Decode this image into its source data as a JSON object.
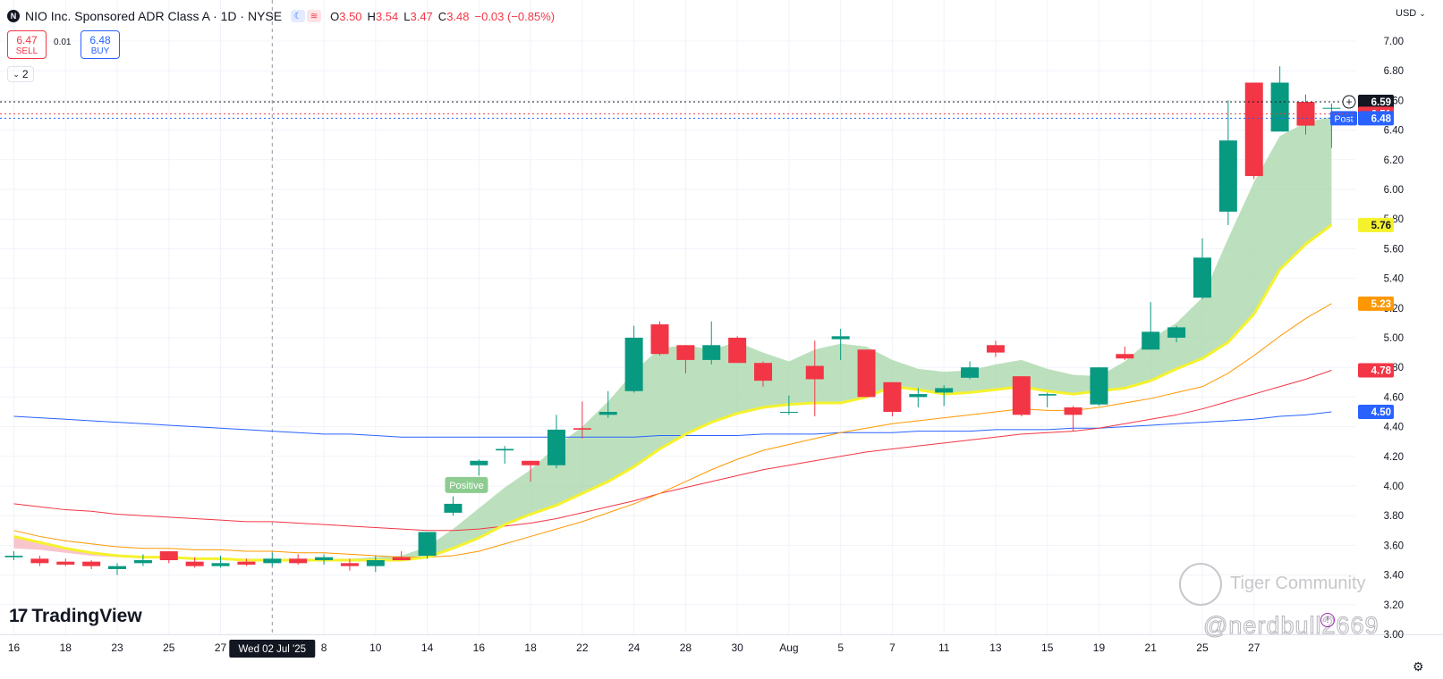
{
  "header": {
    "title": "NIO Inc. Sponsored ADR Class A · 1D · NYSE",
    "open": "3.50",
    "high": "3.54",
    "low": "3.47",
    "close": "3.48",
    "change": "−0.03 (−0.85%)"
  },
  "trade": {
    "sell_price": "6.47",
    "sell_label": "SELL",
    "buy_price": "6.48",
    "buy_label": "BUY",
    "spread": "0.01"
  },
  "indicator_count": "2",
  "currency": "USD",
  "branding": {
    "logo_text": "TradingView",
    "watermark": "Tiger Community",
    "handle": "@nerdbull2669"
  },
  "colors": {
    "up": "#089981",
    "down": "#f23645",
    "ema_fast": "#f5f22d",
    "ema_mid": "#ff9800",
    "ema_slow": "#f23645",
    "ema_long": "#2962ff",
    "cloud_up": "#a5d6a7",
    "cloud_down": "#f8bbc4"
  },
  "chart_data": {
    "type": "candlestick",
    "ylim": [
      3.0,
      7.0
    ],
    "y_ticks": [
      "3.00",
      "3.20",
      "3.40",
      "3.60",
      "3.80",
      "4.00",
      "4.20",
      "4.40",
      "4.60",
      "4.80",
      "5.00",
      "5.20",
      "5.40",
      "5.60",
      "5.80",
      "6.00",
      "6.20",
      "6.40",
      "6.60",
      "6.80",
      "7.00"
    ],
    "x_tick_labels": [
      {
        "i": 0,
        "label": "16"
      },
      {
        "i": 2,
        "label": "18"
      },
      {
        "i": 4,
        "label": "23"
      },
      {
        "i": 6,
        "label": "25"
      },
      {
        "i": 8,
        "label": "27"
      },
      {
        "i": 12,
        "label": "8"
      },
      {
        "i": 14,
        "label": "10"
      },
      {
        "i": 16,
        "label": "14"
      },
      {
        "i": 18,
        "label": "16"
      },
      {
        "i": 20,
        "label": "18"
      },
      {
        "i": 22,
        "label": "22"
      },
      {
        "i": 24,
        "label": "24"
      },
      {
        "i": 26,
        "label": "28"
      },
      {
        "i": 28,
        "label": "30"
      },
      {
        "i": 30,
        "label": "Aug"
      },
      {
        "i": 32,
        "label": "5"
      },
      {
        "i": 34,
        "label": "7"
      },
      {
        "i": 36,
        "label": "11"
      },
      {
        "i": 38,
        "label": "13"
      },
      {
        "i": 40,
        "label": "15"
      },
      {
        "i": 42,
        "label": "19"
      },
      {
        "i": 44,
        "label": "21"
      },
      {
        "i": 46,
        "label": "25"
      },
      {
        "i": 48,
        "label": "27"
      }
    ],
    "crosshair": {
      "i": 10,
      "label": "Wed 02 Jul '25"
    },
    "candles": [
      {
        "o": 3.52,
        "h": 3.56,
        "l": 3.5,
        "c": 3.53
      },
      {
        "o": 3.51,
        "h": 3.53,
        "l": 3.46,
        "c": 3.48
      },
      {
        "o": 3.49,
        "h": 3.51,
        "l": 3.46,
        "c": 3.47
      },
      {
        "o": 3.49,
        "h": 3.5,
        "l": 3.44,
        "c": 3.46
      },
      {
        "o": 3.44,
        "h": 3.48,
        "l": 3.4,
        "c": 3.46
      },
      {
        "o": 3.48,
        "h": 3.54,
        "l": 3.46,
        "c": 3.5
      },
      {
        "o": 3.56,
        "h": 3.56,
        "l": 3.48,
        "c": 3.5
      },
      {
        "o": 3.49,
        "h": 3.52,
        "l": 3.45,
        "c": 3.46
      },
      {
        "o": 3.46,
        "h": 3.53,
        "l": 3.45,
        "c": 3.48
      },
      {
        "o": 3.49,
        "h": 3.51,
        "l": 3.46,
        "c": 3.47
      },
      {
        "o": 3.48,
        "h": 3.55,
        "l": 3.46,
        "c": 3.51
      },
      {
        "o": 3.51,
        "h": 3.54,
        "l": 3.47,
        "c": 3.48
      },
      {
        "o": 3.5,
        "h": 3.54,
        "l": 3.47,
        "c": 3.52
      },
      {
        "o": 3.48,
        "h": 3.51,
        "l": 3.43,
        "c": 3.46
      },
      {
        "o": 3.46,
        "h": 3.53,
        "l": 3.42,
        "c": 3.5
      },
      {
        "o": 3.52,
        "h": 3.56,
        "l": 3.5,
        "c": 3.5
      },
      {
        "o": 3.53,
        "h": 3.69,
        "l": 3.51,
        "c": 3.69
      },
      {
        "o": 3.82,
        "h": 3.93,
        "l": 3.8,
        "c": 3.88
      },
      {
        "o": 4.14,
        "h": 4.18,
        "l": 4.07,
        "c": 4.17
      },
      {
        "o": 4.24,
        "h": 4.27,
        "l": 4.15,
        "c": 4.25
      },
      {
        "o": 4.17,
        "h": 4.17,
        "l": 4.03,
        "c": 4.14
      },
      {
        "o": 4.14,
        "h": 4.48,
        "l": 4.12,
        "c": 4.38
      },
      {
        "o": 4.39,
        "h": 4.57,
        "l": 4.32,
        "c": 4.38
      },
      {
        "o": 4.48,
        "h": 4.64,
        "l": 4.46,
        "c": 4.5
      },
      {
        "o": 4.64,
        "h": 5.08,
        "l": 4.63,
        "c": 5.0
      },
      {
        "o": 5.09,
        "h": 5.11,
        "l": 4.88,
        "c": 4.89
      },
      {
        "o": 4.95,
        "h": 4.95,
        "l": 4.76,
        "c": 4.85
      },
      {
        "o": 4.85,
        "h": 5.11,
        "l": 4.82,
        "c": 4.95
      },
      {
        "o": 5.0,
        "h": 5.01,
        "l": 4.83,
        "c": 4.83
      },
      {
        "o": 4.83,
        "h": 4.84,
        "l": 4.67,
        "c": 4.71
      },
      {
        "o": 4.5,
        "h": 4.61,
        "l": 4.48,
        "c": 4.5
      },
      {
        "o": 4.81,
        "h": 4.98,
        "l": 4.47,
        "c": 4.72
      },
      {
        "o": 4.99,
        "h": 5.06,
        "l": 4.85,
        "c": 5.01
      },
      {
        "o": 4.92,
        "h": 4.92,
        "l": 4.6,
        "c": 4.6
      },
      {
        "o": 4.7,
        "h": 4.7,
        "l": 4.47,
        "c": 4.5
      },
      {
        "o": 4.6,
        "h": 4.66,
        "l": 4.53,
        "c": 4.62
      },
      {
        "o": 4.63,
        "h": 4.68,
        "l": 4.54,
        "c": 4.66
      },
      {
        "o": 4.73,
        "h": 4.84,
        "l": 4.72,
        "c": 4.8
      },
      {
        "o": 4.95,
        "h": 4.98,
        "l": 4.87,
        "c": 4.9
      },
      {
        "o": 4.74,
        "h": 4.74,
        "l": 4.47,
        "c": 4.48
      },
      {
        "o": 4.61,
        "h": 4.63,
        "l": 4.53,
        "c": 4.62
      },
      {
        "o": 4.53,
        "h": 4.54,
        "l": 4.37,
        "c": 4.48
      },
      {
        "o": 4.55,
        "h": 4.8,
        "l": 4.54,
        "c": 4.8
      },
      {
        "o": 4.89,
        "h": 4.94,
        "l": 4.85,
        "c": 4.86
      },
      {
        "o": 4.92,
        "h": 5.24,
        "l": 4.92,
        "c": 5.04
      },
      {
        "o": 5.0,
        "h": 5.08,
        "l": 4.97,
        "c": 5.07
      },
      {
        "o": 5.27,
        "h": 5.67,
        "l": 5.26,
        "c": 5.54
      },
      {
        "o": 5.85,
        "h": 6.6,
        "l": 5.76,
        "c": 6.33
      },
      {
        "o": 6.72,
        "h": 6.72,
        "l": 6.07,
        "c": 6.09
      },
      {
        "o": 6.39,
        "h": 6.83,
        "l": 6.39,
        "c": 6.72
      },
      {
        "o": 6.59,
        "h": 6.64,
        "l": 6.37,
        "c": 6.43
      },
      {
        "o": 6.55,
        "h": 6.58,
        "l": 6.28,
        "c": 6.55
      }
    ],
    "series": [
      {
        "name": "EMA fast",
        "values": [
          3.66,
          3.62,
          3.58,
          3.55,
          3.53,
          3.52,
          3.52,
          3.51,
          3.51,
          3.5,
          3.5,
          3.5,
          3.5,
          3.5,
          3.5,
          3.5,
          3.52,
          3.58,
          3.65,
          3.74,
          3.81,
          3.87,
          3.95,
          4.03,
          4.13,
          4.25,
          4.35,
          4.43,
          4.49,
          4.53,
          4.55,
          4.56,
          4.56,
          4.6,
          4.67,
          4.65,
          4.62,
          4.63,
          4.65,
          4.67,
          4.64,
          4.62,
          4.64,
          4.66,
          4.71,
          4.79,
          4.86,
          4.97,
          5.16,
          5.46,
          5.63,
          5.76
        ]
      },
      {
        "name": "EMA mid",
        "values": [
          3.7,
          3.66,
          3.63,
          3.61,
          3.59,
          3.58,
          3.58,
          3.57,
          3.57,
          3.56,
          3.56,
          3.55,
          3.55,
          3.54,
          3.53,
          3.52,
          3.52,
          3.53,
          3.56,
          3.61,
          3.66,
          3.71,
          3.76,
          3.82,
          3.88,
          3.95,
          4.03,
          4.11,
          4.18,
          4.24,
          4.28,
          4.32,
          4.36,
          4.39,
          4.42,
          4.44,
          4.46,
          4.48,
          4.5,
          4.52,
          4.51,
          4.51,
          4.53,
          4.56,
          4.59,
          4.63,
          4.67,
          4.76,
          4.88,
          5.01,
          5.13,
          5.23
        ]
      },
      {
        "name": "EMA slow",
        "values": [
          3.88,
          3.86,
          3.84,
          3.83,
          3.81,
          3.8,
          3.79,
          3.78,
          3.77,
          3.76,
          3.76,
          3.75,
          3.74,
          3.73,
          3.72,
          3.71,
          3.7,
          3.7,
          3.71,
          3.73,
          3.75,
          3.78,
          3.82,
          3.86,
          3.9,
          3.95,
          3.99,
          4.03,
          4.07,
          4.11,
          4.14,
          4.17,
          4.2,
          4.23,
          4.25,
          4.27,
          4.29,
          4.31,
          4.33,
          4.35,
          4.36,
          4.37,
          4.39,
          4.42,
          4.45,
          4.48,
          4.52,
          4.57,
          4.62,
          4.67,
          4.72,
          4.78
        ]
      },
      {
        "name": "SMA long",
        "values": [
          4.47,
          4.46,
          4.45,
          4.44,
          4.43,
          4.42,
          4.41,
          4.4,
          4.39,
          4.38,
          4.37,
          4.36,
          4.35,
          4.35,
          4.34,
          4.33,
          4.33,
          4.33,
          4.33,
          4.33,
          4.33,
          4.33,
          4.33,
          4.33,
          4.33,
          4.34,
          4.34,
          4.34,
          4.34,
          4.35,
          4.35,
          4.35,
          4.36,
          4.36,
          4.36,
          4.37,
          4.37,
          4.37,
          4.38,
          4.38,
          4.38,
          4.39,
          4.39,
          4.4,
          4.41,
          4.42,
          4.43,
          4.44,
          4.45,
          4.47,
          4.48,
          4.5
        ]
      },
      {
        "name": "cloud edge",
        "values": [
          3.58,
          3.57,
          3.55,
          3.53,
          3.52,
          3.52,
          3.52,
          3.51,
          3.51,
          3.51,
          3.51,
          3.51,
          3.51,
          3.51,
          3.52,
          3.53,
          3.59,
          3.71,
          3.85,
          3.99,
          4.11,
          4.27,
          4.4,
          4.57,
          4.77,
          4.93,
          4.95,
          4.92,
          4.97,
          4.9,
          4.84,
          4.92,
          4.96,
          4.94,
          4.85,
          4.79,
          4.77,
          4.78,
          4.82,
          4.85,
          4.79,
          4.75,
          4.74,
          4.84,
          4.99,
          5.1,
          5.27,
          5.67,
          6.05,
          6.36,
          6.45,
          6.49
        ]
      }
    ],
    "price_labels": [
      {
        "value": 6.59,
        "label": "6.59",
        "bg": "#131722",
        "fg": "#ffffff"
      },
      {
        "value": 6.51,
        "label": "6.51",
        "bg": "#f23645",
        "fg": "#ffffff"
      },
      {
        "value": 6.48,
        "label": "6.48",
        "bg": "#2962ff",
        "fg": "#ffffff",
        "tag": "Post"
      },
      {
        "value": 5.76,
        "label": "5.76",
        "bg": "#f5f22d",
        "fg": "#131722"
      },
      {
        "value": 5.23,
        "label": "5.23",
        "bg": "#ff9800",
        "fg": "#ffffff"
      },
      {
        "value": 4.78,
        "label": "4.78",
        "bg": "#f23645",
        "fg": "#ffffff"
      },
      {
        "value": 4.5,
        "label": "4.50",
        "bg": "#2962ff",
        "fg": "#ffffff"
      }
    ],
    "annotations": [
      {
        "i": 17,
        "value": 3.88,
        "text": "Positive"
      }
    ]
  }
}
